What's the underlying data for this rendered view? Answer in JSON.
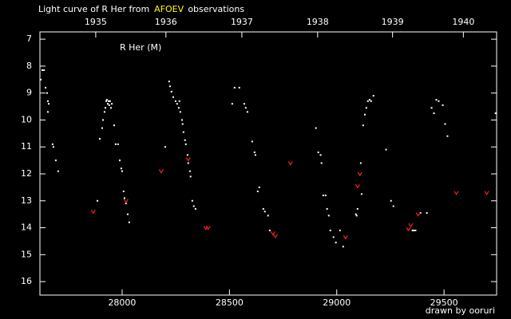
{
  "chart_data": {
    "type": "scatter",
    "title_parts": [
      {
        "text": "Light curve of R Her from",
        "color": "#ffffff"
      },
      {
        "text": "AFOEV",
        "color": "#ffff00"
      },
      {
        "text": "observations",
        "color": "#ffffff"
      }
    ],
    "annotation": "R Her (M)",
    "credit": "drawn by ooruri",
    "credit_color": "#00e0e0",
    "background": "#000000",
    "axis_color": "#ffffff",
    "xlim": [
      27617,
      29745
    ],
    "ylim": [
      16.5,
      6.73
    ],
    "xticks": [
      28000,
      28500,
      29000,
      29500
    ],
    "yticks": [
      7,
      8,
      9,
      10,
      11,
      12,
      13,
      14,
      15,
      16
    ],
    "x2ticks": [
      {
        "value": 27877,
        "label": "1935"
      },
      {
        "value": 28204,
        "label": "1936"
      },
      {
        "value": 28558,
        "label": "1937"
      },
      {
        "value": 28911,
        "label": "1938"
      },
      {
        "value": 29260,
        "label": "1939"
      },
      {
        "value": 29590,
        "label": "1940"
      }
    ],
    "series": [
      {
        "color": "#ffffff",
        "marker": "dot",
        "x": [
          27621,
          27628,
          27636,
          27643,
          27650,
          27654,
          27658,
          27654,
          27676,
          27680,
          27691,
          27702,
          27885,
          27896,
          27907,
          27911,
          27918,
          27922,
          27926,
          27929,
          27933,
          27937,
          27940,
          27944,
          27948,
          27952,
          27963,
          27970,
          27981,
          27989,
          27996,
          28000,
          28007,
          28011,
          28018,
          28026,
          28033,
          28201,
          28219,
          28223,
          28230,
          28238,
          28249,
          28256,
          28264,
          28267,
          28271,
          28279,
          28282,
          28286,
          28293,
          28297,
          28305,
          28308,
          28316,
          28319,
          28327,
          28334,
          28342,
          28513,
          28524,
          28546,
          28569,
          28576,
          28584,
          28606,
          28617,
          28621,
          28632,
          28639,
          28658,
          28665,
          28680,
          28688,
          28903,
          28914,
          28925,
          28929,
          28937,
          28948,
          28955,
          28963,
          28970,
          28985,
          28996,
          29015,
          29030,
          29089,
          29093,
          29097,
          29112,
          29116,
          29123,
          29131,
          29138,
          29145,
          29153,
          29160,
          29171,
          29230,
          29253,
          29264,
          29353,
          29360,
          29367,
          29390,
          29420,
          29442,
          29453,
          29464,
          29475,
          29494,
          29505,
          29516,
          29740
        ],
        "y": [
          8.5,
          8.15,
          8.15,
          8.8,
          9.0,
          9.3,
          9.4,
          9.7,
          10.9,
          11.0,
          11.5,
          11.9,
          13.0,
          10.7,
          10.3,
          10.0,
          9.7,
          9.55,
          9.3,
          9.25,
          9.4,
          9.3,
          9.45,
          9.3,
          9.55,
          9.4,
          10.2,
          10.9,
          10.9,
          11.5,
          11.8,
          11.9,
          12.65,
          12.9,
          13.1,
          13.5,
          13.8,
          11.0,
          8.57,
          8.75,
          8.95,
          9.15,
          9.3,
          9.4,
          9.55,
          9.3,
          9.7,
          10.0,
          10.15,
          10.45,
          10.75,
          10.9,
          11.3,
          11.6,
          11.9,
          12.1,
          13.0,
          13.2,
          13.3,
          9.4,
          8.8,
          8.8,
          9.4,
          9.55,
          9.7,
          10.8,
          11.2,
          11.3,
          12.65,
          12.5,
          13.3,
          13.4,
          13.55,
          14.1,
          10.3,
          11.2,
          11.3,
          11.6,
          12.8,
          12.8,
          13.3,
          13.55,
          14.1,
          14.35,
          14.55,
          14.1,
          14.7,
          13.5,
          13.55,
          13.3,
          11.6,
          12.75,
          10.2,
          9.8,
          9.55,
          9.3,
          9.25,
          9.3,
          9.1,
          11.1,
          13.0,
          13.2,
          14.1,
          14.1,
          14.1,
          13.45,
          13.45,
          9.55,
          9.75,
          9.25,
          9.3,
          9.45,
          10.15,
          10.6,
          9.75
        ]
      },
      {
        "color": "#ff2020",
        "marker": "v",
        "x": [
          27866,
          28018,
          28182,
          28308,
          28390,
          28401,
          28703,
          28714,
          28784,
          29041,
          29097,
          29108,
          29334,
          29345,
          29379,
          29557,
          29699
        ],
        "y": [
          13.4,
          13.0,
          11.9,
          11.45,
          14.0,
          14.0,
          14.2,
          14.3,
          11.6,
          14.35,
          12.45,
          12.0,
          14.05,
          13.9,
          13.5,
          12.7,
          12.7
        ]
      }
    ]
  }
}
